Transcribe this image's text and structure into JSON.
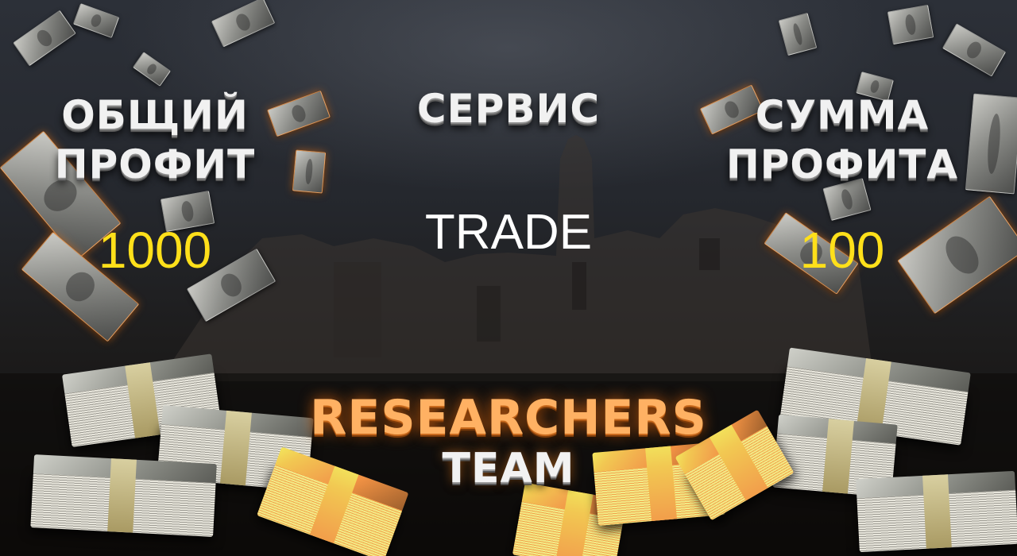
{
  "columns": {
    "left": {
      "heading_line1": "ОБЩИЙ",
      "heading_line2": "ПРОФИТ",
      "value": "1000"
    },
    "center": {
      "heading": "СЕРВИС",
      "value": "TRADE"
    },
    "right": {
      "heading_line1": "СУММА",
      "heading_line2": "ПРОФИТА",
      "value": "100"
    }
  },
  "logo": {
    "line1": "RESEARCHERS",
    "line2": "TEAM"
  },
  "colors": {
    "value_accent": "#ffe01a",
    "logo_accent": "#ff8a1e",
    "heading": "#f1f1f1"
  },
  "decorations": {
    "background": "ruins-silhouette",
    "icons": [
      "flying-banknote-icon",
      "money-stack-icon"
    ]
  }
}
